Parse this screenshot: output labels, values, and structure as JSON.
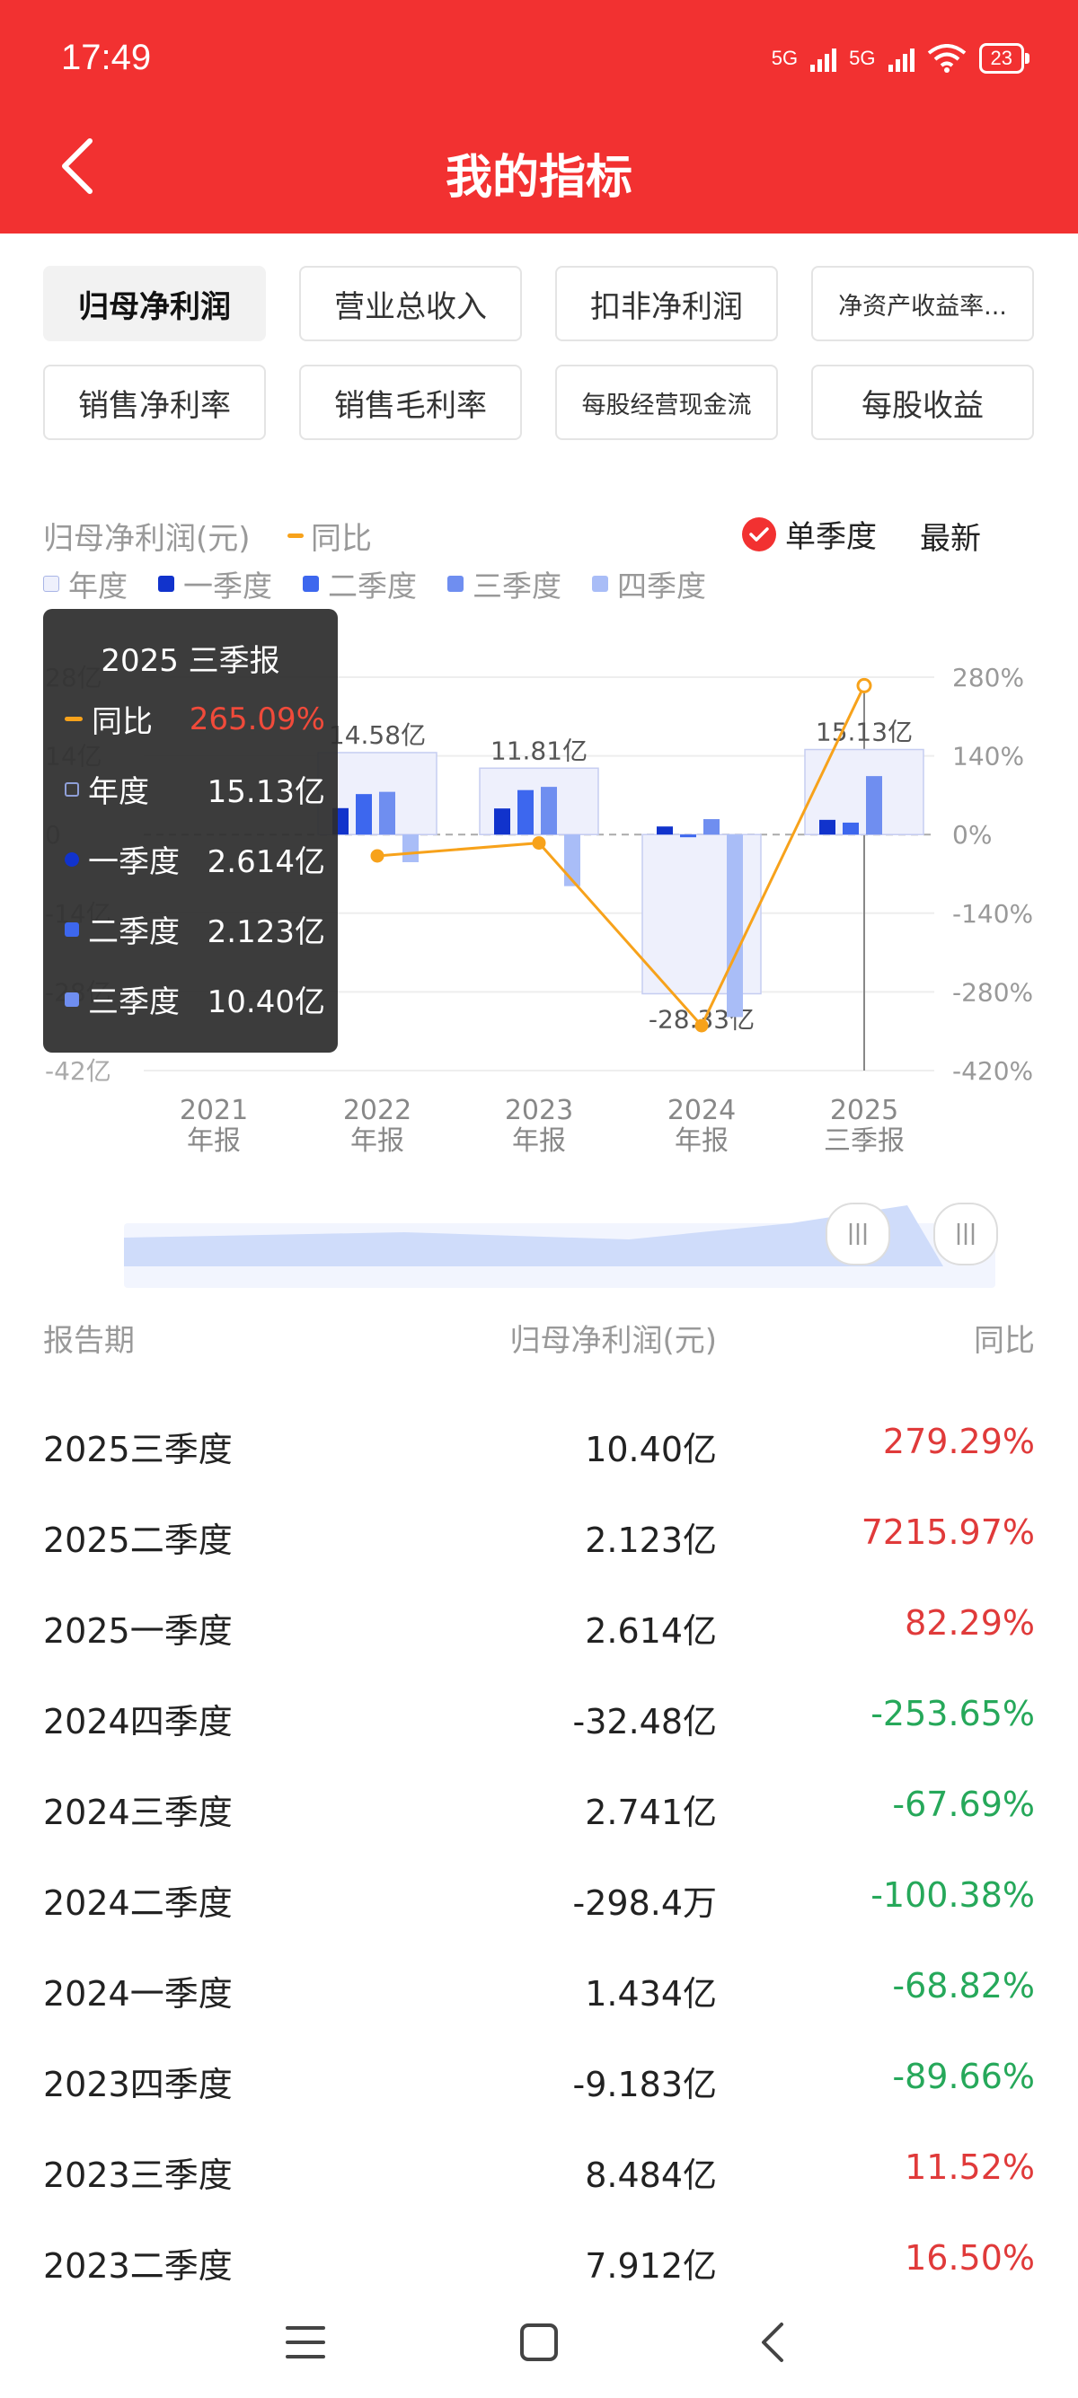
{
  "status_bar": {
    "time": "17:49",
    "network": "5G",
    "battery": "23"
  },
  "header": {
    "title": "我的指标"
  },
  "chips": [
    {
      "label": "归母净利润",
      "active": true,
      "small": false
    },
    {
      "label": "营业总收入",
      "active": false,
      "small": false
    },
    {
      "label": "扣非净利润",
      "active": false,
      "small": false
    },
    {
      "label": "净资产收益率...",
      "active": false,
      "small": true
    },
    {
      "label": "销售净利率",
      "active": false,
      "small": false
    },
    {
      "label": "销售毛利率",
      "active": false,
      "small": false
    },
    {
      "label": "每股经营现金流",
      "active": false,
      "small": true
    },
    {
      "label": "每股收益",
      "active": false,
      "small": false
    }
  ],
  "chart_header": {
    "title": "归母净利润(元)",
    "yoy_label": "同比",
    "single_quarter_label": "单季度",
    "latest_label": "最新",
    "legend": [
      "年度",
      "一季度",
      "二季度",
      "三季度",
      "四季度"
    ]
  },
  "colors": {
    "brand_red": "#f23131",
    "annual": "#eef0fc",
    "q1": "#1133cc",
    "q2": "#3d67ee",
    "q3": "#6f8ef0",
    "q4": "#a9bdf7",
    "yoy_line": "#f7a21b",
    "positive": "#e03a3a",
    "negative": "#26a85a"
  },
  "chart_data": {
    "type": "bar",
    "categories": [
      [
        "2021",
        "年报"
      ],
      [
        "2022",
        "年报"
      ],
      [
        "2023",
        "年报"
      ],
      [
        "2024",
        "年报"
      ],
      [
        "2025",
        "三季报"
      ]
    ],
    "series": [
      {
        "name": "年度",
        "unit": "亿",
        "values": [
          null,
          14.58,
          11.81,
          -28.33,
          15.13
        ],
        "labels": [
          "",
          "14.58亿",
          "11.81亿",
          "-28.33亿",
          "15.13亿"
        ]
      },
      {
        "name": "一季度",
        "unit": "亿",
        "values": [
          null,
          4.7,
          4.64,
          1.434,
          2.614
        ]
      },
      {
        "name": "二季度",
        "unit": "亿",
        "values": [
          null,
          7.2,
          7.912,
          -0.0298,
          2.123
        ]
      },
      {
        "name": "三季度",
        "unit": "亿",
        "values": [
          null,
          7.6,
          8.484,
          2.741,
          10.4
        ]
      },
      {
        "name": "四季度",
        "unit": "亿",
        "values": [
          null,
          -4.92,
          -9.183,
          -32.48,
          null
        ]
      },
      {
        "name": "同比",
        "unit": "%",
        "axis": "right",
        "values": [
          null,
          -38,
          -15,
          -340,
          265.09
        ]
      }
    ],
    "y_left": {
      "ticks": [
        "28亿",
        "14亿",
        "0",
        "-14亿",
        "-28亿",
        "-42亿"
      ],
      "range": [
        -42,
        28
      ]
    },
    "y_right": {
      "ticks": [
        "280%",
        "140%",
        "0%",
        "-140%",
        "-280%",
        "-420%"
      ],
      "range": [
        -420,
        280
      ]
    },
    "selected_category": "2025 三季报"
  },
  "tooltip": {
    "title": "2025 三季报",
    "rows": [
      {
        "label": "同比",
        "value": "265.09%"
      },
      {
        "label": "年度",
        "value": "15.13亿"
      },
      {
        "label": "一季度",
        "value": "2.614亿"
      },
      {
        "label": "二季度",
        "value": "2.123亿"
      },
      {
        "label": "三季度",
        "value": "10.40亿"
      }
    ]
  },
  "table": {
    "headers": [
      "报告期",
      "归母净利润(元)",
      "同比"
    ],
    "rows": [
      {
        "period": "2025三季度",
        "value": "10.40亿",
        "yoy": "279.29%",
        "up": true
      },
      {
        "period": "2025二季度",
        "value": "2.123亿",
        "yoy": "7215.97%",
        "up": true
      },
      {
        "period": "2025一季度",
        "value": "2.614亿",
        "yoy": "82.29%",
        "up": true
      },
      {
        "period": "2024四季度",
        "value": "-32.48亿",
        "yoy": "-253.65%",
        "up": false
      },
      {
        "period": "2024三季度",
        "value": "2.741亿",
        "yoy": "-67.69%",
        "up": false
      },
      {
        "period": "2024二季度",
        "value": "-298.4万",
        "yoy": "-100.38%",
        "up": false
      },
      {
        "period": "2024一季度",
        "value": "1.434亿",
        "yoy": "-68.82%",
        "up": false
      },
      {
        "period": "2023四季度",
        "value": "-9.183亿",
        "yoy": "-89.66%",
        "up": false
      },
      {
        "period": "2023三季度",
        "value": "8.484亿",
        "yoy": "11.52%",
        "up": true
      },
      {
        "period": "2023二季度",
        "value": "7.912亿",
        "yoy": "16.50%",
        "up": true
      }
    ]
  }
}
